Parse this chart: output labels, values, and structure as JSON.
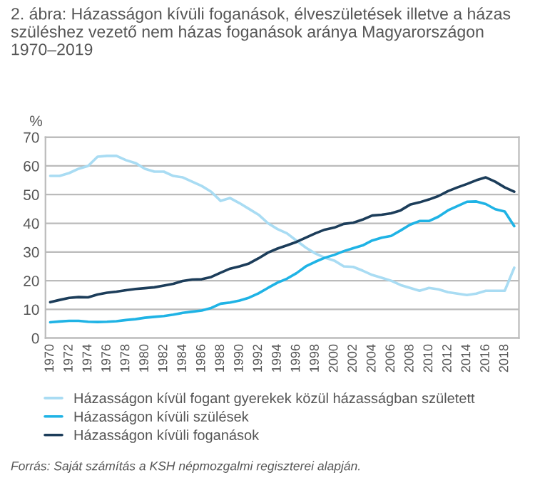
{
  "chart_data": {
    "type": "line",
    "title": "2. ábra: Házasságon kívüli foganások, élveszületések illetve a házas szüléshez vezető nem házas foganások aránya Magyarországon 1970–2019",
    "ylabel": "%",
    "x": [
      1970,
      1971,
      1972,
      1973,
      1974,
      1975,
      1976,
      1977,
      1978,
      1979,
      1980,
      1981,
      1982,
      1983,
      1984,
      1985,
      1986,
      1987,
      1988,
      1989,
      1990,
      1991,
      1992,
      1993,
      1994,
      1995,
      1996,
      1997,
      1998,
      1999,
      2000,
      2001,
      2002,
      2003,
      2004,
      2005,
      2006,
      2007,
      2008,
      2009,
      2010,
      2011,
      2012,
      2013,
      2014,
      2015,
      2016,
      2017,
      2018,
      2019
    ],
    "series": [
      {
        "name": "Házasságon kívül fogant gyerekek közül házasságban született",
        "color": "#a9dcf3",
        "values": [
          56.5,
          56.5,
          57.5,
          59,
          60,
          63.2,
          63.5,
          63.5,
          62,
          61,
          59,
          58,
          58,
          56.5,
          56,
          54.5,
          53,
          51,
          47.8,
          48.8,
          47,
          45,
          43,
          40,
          38,
          36.5,
          34,
          31.5,
          29.5,
          28,
          27,
          25,
          24.8,
          23.5,
          22,
          21,
          20,
          18.5,
          17.5,
          16.5,
          17.5,
          17,
          16,
          15.5,
          15,
          15.5,
          16.5,
          16.5,
          16.5,
          24.5
        ]
      },
      {
        "name": "Házasságon kívüli szülések",
        "color": "#1fb3e5",
        "values": [
          5.5,
          5.8,
          6,
          6,
          5.7,
          5.6,
          5.7,
          5.9,
          6.3,
          6.6,
          7.1,
          7.4,
          7.7,
          8.2,
          8.8,
          9.2,
          9.6,
          10.5,
          12,
          12.4,
          13.1,
          14.1,
          15.6,
          17.5,
          19.3,
          20.7,
          22.6,
          25,
          26.6,
          28,
          29,
          30.3,
          31.3,
          32.3,
          34,
          35,
          35.6,
          37.5,
          39.5,
          40.8,
          40.8,
          42.3,
          44.5,
          46,
          47.5,
          47.6,
          46.7,
          44.9,
          44.1,
          39
        ]
      },
      {
        "name": "Házasságon kívüli foganások",
        "color": "#1c3d5a",
        "values": [
          12.5,
          13.3,
          14,
          14.3,
          14.2,
          15.2,
          15.8,
          16.2,
          16.7,
          17.1,
          17.4,
          17.7,
          18.3,
          18.9,
          19.9,
          20.4,
          20.5,
          21.3,
          22.8,
          24.2,
          25,
          26,
          27.8,
          29.8,
          31.2,
          32.3,
          33.5,
          35,
          36.5,
          37.8,
          38.5,
          39.8,
          40.2,
          41.3,
          42.7,
          43,
          43.5,
          44.5,
          46.5,
          47.3,
          48.3,
          49.5,
          51.2,
          52.5,
          53.7,
          55,
          56,
          54.5,
          52.5,
          51
        ]
      }
    ],
    "xlim": [
      1969.5,
      2019.5
    ],
    "xticks": [
      1970,
      1972,
      1974,
      1976,
      1978,
      1980,
      1982,
      1984,
      1986,
      1988,
      1990,
      1992,
      1994,
      1996,
      1998,
      2000,
      2002,
      2004,
      2006,
      2008,
      2010,
      2012,
      2014,
      2016,
      2018
    ],
    "ylim": [
      0,
      70
    ],
    "yticks": [
      0,
      10,
      20,
      30,
      40,
      50,
      60,
      70
    ],
    "grid": "y",
    "legend": "bottom",
    "marker": "none",
    "line_style": "solid",
    "annotations": [
      "Forrás: Saját számítás a KSH népmozgalmi regiszterei alapján."
    ]
  }
}
